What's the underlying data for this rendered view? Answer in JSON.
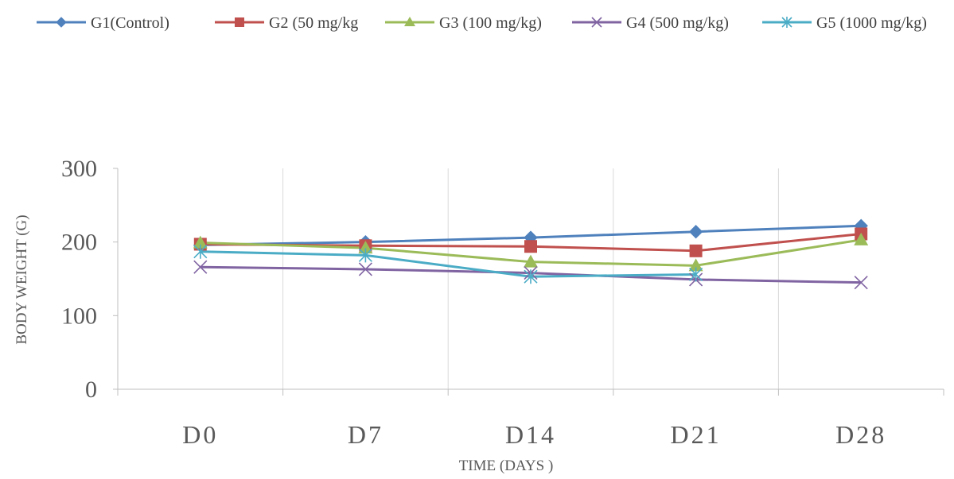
{
  "chart_data": {
    "type": "line",
    "title": "",
    "xlabel": "TIME (DAYS )",
    "ylabel": "BODY WEIGHT (G)",
    "categories": [
      "D0",
      "D7",
      "D14",
      "D21",
      "D28"
    ],
    "ylim": [
      0,
      300
    ],
    "yticks": [
      0,
      100,
      200,
      300
    ],
    "grid": "vertical",
    "legend_position": "top",
    "series": [
      {
        "name": "G1(Control)",
        "color": "#4F81BD",
        "marker": "diamond",
        "values": [
          196,
          200,
          206,
          214,
          222
        ]
      },
      {
        "name": "G2 (50 mg/kg",
        "color": "#C0504D",
        "marker": "square",
        "values": [
          197,
          195,
          194,
          188,
          211
        ]
      },
      {
        "name": "G3 (100 mg/kg)",
        "color": "#9BBB59",
        "marker": "triangle",
        "values": [
          199,
          192,
          173,
          168,
          203
        ]
      },
      {
        "name": "G4 (500 mg/kg)",
        "color": "#8064A2",
        "marker": "x",
        "values": [
          166,
          163,
          158,
          149,
          145
        ]
      },
      {
        "name": "G5 (1000 mg/kg)",
        "color": "#4BACC6",
        "marker": "star",
        "values": [
          187,
          182,
          153,
          156,
          null
        ]
      }
    ]
  }
}
